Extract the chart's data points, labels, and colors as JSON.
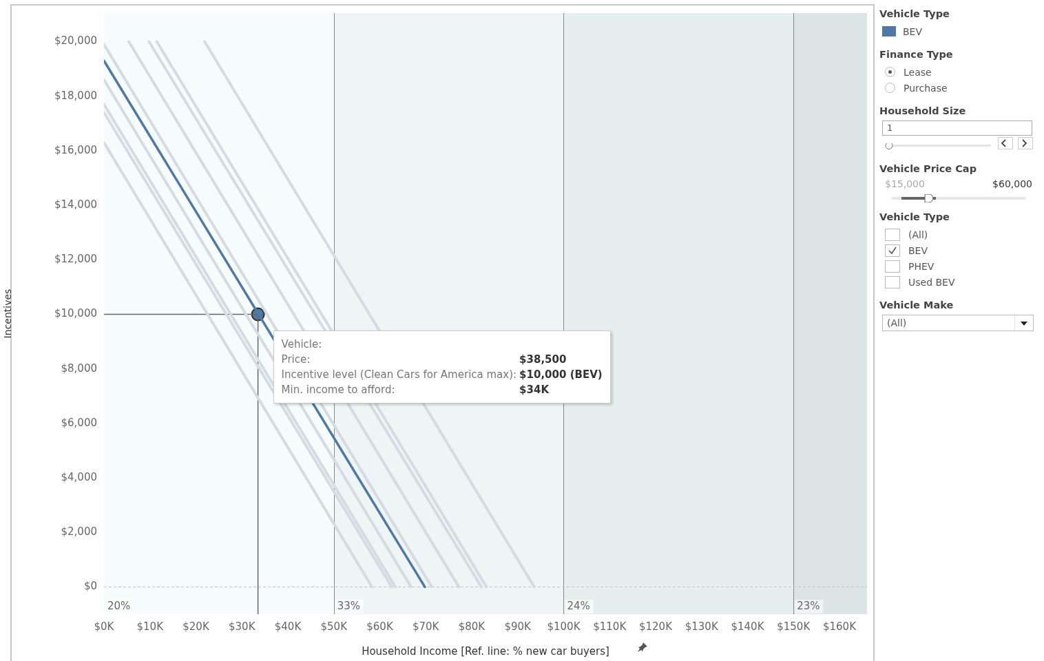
{
  "chart_data": {
    "type": "line",
    "xlabel": "Household Income [Ref. line: % new car buyers]",
    "ylabel": "Incentives",
    "legend_title": "Vehicle Type",
    "legend": "right",
    "grid": false,
    "xlim": [
      0,
      166
    ],
    "xticks": [
      {
        "value": 0,
        "label": "$0K"
      },
      {
        "value": 10,
        "label": "$10K"
      },
      {
        "value": 20,
        "label": "$20K"
      },
      {
        "value": 30,
        "label": "$30K"
      },
      {
        "value": 40,
        "label": "$40K"
      },
      {
        "value": 50,
        "label": "$50K"
      },
      {
        "value": 60,
        "label": "$60K"
      },
      {
        "value": 70,
        "label": "$70K"
      },
      {
        "value": 80,
        "label": "$80K"
      },
      {
        "value": 90,
        "label": "$90K"
      },
      {
        "value": 100,
        "label": "$100K"
      },
      {
        "value": 110,
        "label": "$110K"
      },
      {
        "value": 120,
        "label": "$120K"
      },
      {
        "value": 130,
        "label": "$130K"
      },
      {
        "value": 140,
        "label": "$140K"
      },
      {
        "value": 150,
        "label": "$150K"
      },
      {
        "value": 160,
        "label": "$160K"
      }
    ],
    "ylim": [
      -1000,
      21050
    ],
    "yticks": [
      {
        "value": 0,
        "label": "$0"
      },
      {
        "value": 2000,
        "label": "$2,000"
      },
      {
        "value": 4000,
        "label": "$4,000"
      },
      {
        "value": 6000,
        "label": "$6,000"
      },
      {
        "value": 8000,
        "label": "$8,000"
      },
      {
        "value": 10000,
        "label": "$10,000"
      },
      {
        "value": 12000,
        "label": "$12,000"
      },
      {
        "value": 14000,
        "label": "$14,000"
      },
      {
        "value": 16000,
        "label": "$16,000"
      },
      {
        "value": 18000,
        "label": "$18,000"
      },
      {
        "value": 20000,
        "label": "$20,000"
      }
    ],
    "bands": [
      {
        "axis": "x",
        "from": 0,
        "to": 50,
        "label": "20%",
        "color": "#f6fbfb"
      },
      {
        "axis": "x",
        "from": 50,
        "to": 100,
        "label": "33%",
        "color": "#eff5f5"
      },
      {
        "axis": "x",
        "from": 100,
        "to": 150,
        "label": "24%",
        "color": "#e6efee"
      },
      {
        "axis": "x",
        "from": 150,
        "to": 166,
        "label": "23%",
        "color": "#dce4e5"
      }
    ],
    "ref_lines": [
      {
        "axis": "x",
        "value": 50,
        "color": "#8a8a8a",
        "line_style": "solid"
      },
      {
        "axis": "x",
        "value": 100,
        "color": "#8a8a8a",
        "line_style": "solid"
      },
      {
        "axis": "x",
        "value": 150,
        "color": "#8a8a8a",
        "line_style": "solid"
      },
      {
        "axis": "y",
        "value": 0,
        "color": "#c4c4c4",
        "line_style": "dashed"
      }
    ],
    "series": [
      {
        "color": "#d4dbe3",
        "x": [
          0,
          71.3
        ],
        "values": [
          19900,
          0
        ]
      },
      {
        "color": "#d4dbe3",
        "x": [
          0,
          66.8
        ],
        "values": [
          18600,
          0
        ]
      },
      {
        "color": "#d4dbe3",
        "x": [
          0,
          63.4
        ],
        "values": [
          17700,
          0
        ]
      },
      {
        "color": "#d4dbe3",
        "x": [
          0,
          62.6
        ],
        "values": [
          17400,
          0
        ]
      },
      {
        "color": "#d4dbe3",
        "x": [
          0,
          58.3
        ],
        "values": [
          16300,
          0
        ]
      },
      {
        "color": "#d4dbe3",
        "x": [
          5.4,
          77.2
        ],
        "values": [
          20000,
          0
        ]
      },
      {
        "color": "#d4dbe3",
        "x": [
          9.8,
          82.1
        ],
        "values": [
          20000,
          0
        ]
      },
      {
        "color": "#d4dbe3",
        "x": [
          11.5,
          83.2
        ],
        "values": [
          20000,
          0
        ]
      },
      {
        "color": "#d4dbe3",
        "x": [
          21.9,
          93.6
        ],
        "values": [
          20000,
          0
        ]
      },
      {
        "name": "BEV",
        "color": "#4e79a7",
        "x": [
          0,
          69.8
        ],
        "values": [
          19300,
          0
        ]
      },
      {
        "color": "#666666",
        "x": [
          0,
          33.5
        ],
        "values": [
          10000,
          10000
        ]
      },
      {
        "color": "#666666",
        "x": [
          33.5,
          33.5
        ],
        "values": [
          10000,
          -1000
        ]
      },
      {
        "type": "scatter",
        "marker": "circle",
        "color": "#4e79a7",
        "x": [
          33.5
        ],
        "values": [
          10000
        ]
      }
    ],
    "annotations": [
      "Vehicle:",
      "Price:",
      "$38,500",
      "Incentive level (Clean Cars for America max):",
      "$10,000 (BEV)",
      "Min. income to afford:",
      "$34K",
      "Finance Type",
      "Lease",
      "Purchase",
      "Household Size",
      "1",
      "Vehicle Price Cap",
      "$15,000",
      "$60,000",
      "Vehicle Type",
      "(All)",
      "BEV",
      "PHEV",
      "Used BEV",
      "Vehicle Make",
      "(All)"
    ]
  }
}
